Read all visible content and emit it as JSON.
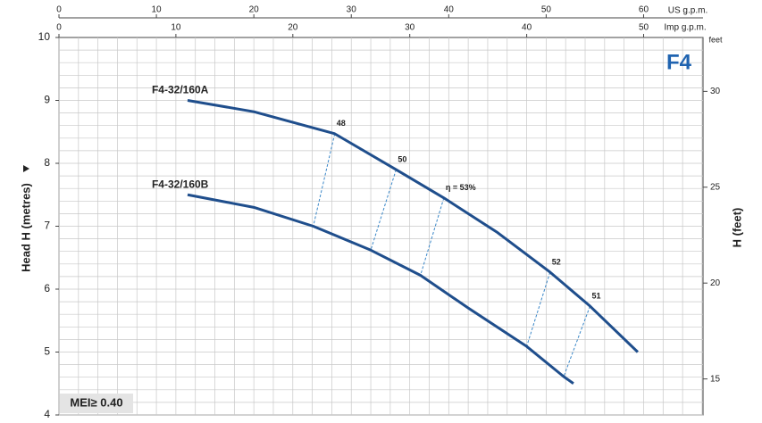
{
  "chart_data": {
    "type": "line",
    "title": "F4",
    "x_label": "US g.p.m.",
    "x2_label": "Imp g.p.m.",
    "y_label": "Head H (metres)",
    "y2_label": "H (feet)",
    "y2_unit": "feet",
    "xlim": [
      0,
      66.1
    ],
    "xticks": [
      0,
      10,
      20,
      30,
      40,
      50,
      60
    ],
    "x2lim": [
      0,
      55.08
    ],
    "x2ticks": [
      0,
      10,
      20,
      30,
      40,
      50
    ],
    "ylim": [
      4,
      10
    ],
    "yticks": [
      4,
      5,
      6,
      7,
      8,
      9,
      10
    ],
    "y2lim": [
      13.12,
      32.81
    ],
    "y2ticks": [
      15,
      20,
      25,
      30
    ],
    "grid": true,
    "color": "#1f4e8c",
    "series": [
      {
        "name": "F4-32/160A",
        "x": [
          13.2,
          20,
          28.3,
          34.6,
          39.5,
          45,
          50.4,
          54.5,
          59.4
        ],
        "values": [
          9.0,
          8.82,
          8.47,
          7.9,
          7.45,
          6.9,
          6.27,
          5.73,
          5.0
        ]
      },
      {
        "name": "F4-32/160B",
        "x": [
          13.2,
          20,
          26.1,
          32,
          37.1,
          42,
          48,
          51.8,
          52.8
        ],
        "values": [
          7.5,
          7.3,
          7.0,
          6.62,
          6.22,
          5.7,
          5.09,
          4.61,
          4.5
        ]
      }
    ],
    "efficiency_color": "#3a87c8",
    "efficiency_lines": [
      {
        "label": "48",
        "x": [
          28.3,
          26.1
        ],
        "y": [
          8.47,
          7.0
        ]
      },
      {
        "label": "50",
        "x": [
          34.6,
          32.0
        ],
        "y": [
          7.9,
          6.62
        ]
      },
      {
        "label": "η = 53%",
        "x": [
          39.5,
          37.1
        ],
        "y": [
          7.45,
          6.22
        ]
      },
      {
        "label": "52",
        "x": [
          50.4,
          48.0
        ],
        "y": [
          6.27,
          5.09
        ]
      },
      {
        "label": "51",
        "x": [
          54.5,
          51.8
        ],
        "y": [
          5.73,
          4.61
        ]
      }
    ],
    "badge": "MEI≥ 0.40"
  }
}
